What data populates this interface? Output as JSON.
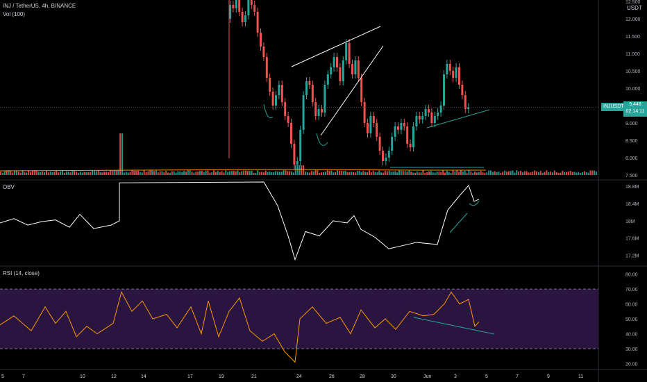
{
  "header": {
    "symbol": "INJ / TetherUS, 4h, BINANCE",
    "volume": "Vol (100)",
    "currency": "USDT"
  },
  "indicators": {
    "obv": "OBV",
    "rsi": "RSI (14, close)"
  },
  "badges": {
    "symbol_tag": "INJUSDT",
    "price": "9.448",
    "countdown": "02:14:11"
  },
  "colors": {
    "up": "#26a69a",
    "down": "#ef5350",
    "line": "#ffffff",
    "rsi": "#ff9800",
    "rsi_band": "#2a1540",
    "annotation": "#26a69a"
  },
  "chart_data": [
    {
      "type": "candlestick",
      "title": "INJ / TetherUS, 4h, BINANCE",
      "y_ticks": [
        "12.500",
        "12.000",
        "11.500",
        "11.000",
        "10.500",
        "10.000",
        "9.000",
        "8.500",
        "8.000",
        "7.500"
      ],
      "x_ticks": [
        "5",
        "7",
        "10",
        "12",
        "14",
        "17",
        "19",
        "21",
        "24",
        "26",
        "28",
        "30",
        "Jun",
        "3",
        "5",
        "7",
        "9",
        "11"
      ],
      "last_price": 9.448,
      "ylim": [
        7.5,
        12.5
      ],
      "close_series": [
        12.4,
        12.3,
        12.7,
        12.2,
        11.9,
        12.1,
        12.6,
        12.4,
        12.2,
        11.6,
        11.2,
        10.9,
        10.3,
        9.9,
        9.5,
        9.8,
        10.1,
        9.6,
        9.2,
        9.0,
        8.4,
        7.8,
        7.9,
        8.8,
        9.8,
        10.2,
        10.1,
        9.6,
        9.2,
        9.4,
        9.3,
        10.1,
        10.4,
        10.6,
        10.9,
        10.6,
        10.2,
        10.8,
        11.3,
        10.7,
        10.4,
        10.8,
        10.3,
        9.6,
        9.0,
        8.7,
        9.2,
        9.0,
        8.6,
        8.2,
        7.9,
        8.0,
        8.2,
        8.6,
        8.9,
        8.8,
        9.0,
        8.9,
        8.4,
        8.3,
        8.9,
        9.2,
        9.1,
        9.2,
        9.4,
        9.3,
        9.0,
        9.2,
        9.3,
        9.5,
        10.4,
        10.7,
        10.5,
        10.3,
        10.6,
        10.1,
        9.8,
        9.4,
        9.45
      ]
    },
    {
      "type": "line",
      "title": "OBV",
      "y_ticks": [
        "18.8M",
        "18.4M",
        "18M",
        "17.6M",
        "17.2M"
      ]
    },
    {
      "type": "line",
      "title": "RSI (14, close)",
      "y_ticks": [
        "80.00",
        "70.00",
        "60.00",
        "50.00",
        "40.00",
        "30.00",
        "20.00"
      ],
      "band": [
        30,
        70
      ]
    }
  ]
}
